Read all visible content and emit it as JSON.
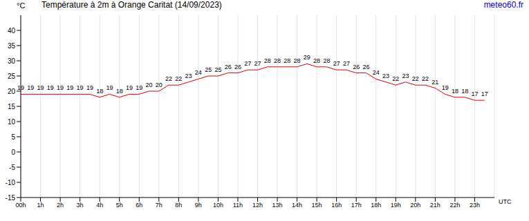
{
  "chart_data": {
    "type": "line",
    "title": "Température à 2m à Orange Caritat (14/09/2023)",
    "source": "meteo60.fr",
    "y_label": "°C",
    "x_label": "UTC",
    "x": [
      0,
      0.5,
      1,
      1.5,
      2,
      2.5,
      3,
      3.5,
      4,
      4.5,
      5,
      5.5,
      6,
      6.5,
      7,
      7.5,
      8,
      8.5,
      9,
      9.5,
      10,
      10.5,
      11,
      11.5,
      12,
      12.5,
      13,
      13.5,
      14,
      14.5,
      15,
      15.5,
      16,
      16.5,
      17,
      17.5,
      18,
      18.5,
      19,
      19.5,
      20,
      20.5,
      21,
      21.5,
      22,
      22.5,
      23,
      23.5
    ],
    "values": [
      19,
      19,
      19,
      19,
      19,
      19,
      19,
      19,
      18,
      19,
      18,
      19,
      19,
      20,
      20,
      22,
      22,
      23,
      24,
      25,
      25,
      26,
      26,
      27,
      27,
      28,
      28,
      28,
      28,
      29,
      28,
      28,
      27,
      27,
      26,
      26,
      24,
      23,
      22,
      23,
      22,
      22,
      21,
      19,
      18,
      18,
      17,
      17
    ],
    "color": "#e00000",
    "xlim": [
      0,
      24
    ],
    "xticks": [
      {
        "value": 0,
        "label": "00h"
      },
      {
        "value": 1,
        "label": "1h"
      },
      {
        "value": 2,
        "label": "2h"
      },
      {
        "value": 3,
        "label": "3h"
      },
      {
        "value": 4,
        "label": "4h"
      },
      {
        "value": 5,
        "label": "5h"
      },
      {
        "value": 6,
        "label": "6h"
      },
      {
        "value": 7,
        "label": "7h"
      },
      {
        "value": 8,
        "label": "8h"
      },
      {
        "value": 9,
        "label": "9h"
      },
      {
        "value": 10,
        "label": "10h"
      },
      {
        "value": 11,
        "label": "11h"
      },
      {
        "value": 12,
        "label": "12h"
      },
      {
        "value": 13,
        "label": "13h"
      },
      {
        "value": 14,
        "label": "14h"
      },
      {
        "value": 15,
        "label": "15h"
      },
      {
        "value": 16,
        "label": "16h"
      },
      {
        "value": 17,
        "label": "17h"
      },
      {
        "value": 18,
        "label": "18h"
      },
      {
        "value": 19,
        "label": "19h"
      },
      {
        "value": 20,
        "label": "20h"
      },
      {
        "value": 21,
        "label": "21h"
      },
      {
        "value": 22,
        "label": "22h"
      },
      {
        "value": 23,
        "label": "23h"
      }
    ],
    "ylim": [
      -15,
      45
    ],
    "yticks": [
      -15,
      -10,
      -5,
      0,
      5,
      10,
      15,
      20,
      25,
      30,
      35,
      40
    ],
    "grid": true,
    "data_labels": true,
    "marker": "none",
    "line_style": "solid"
  }
}
